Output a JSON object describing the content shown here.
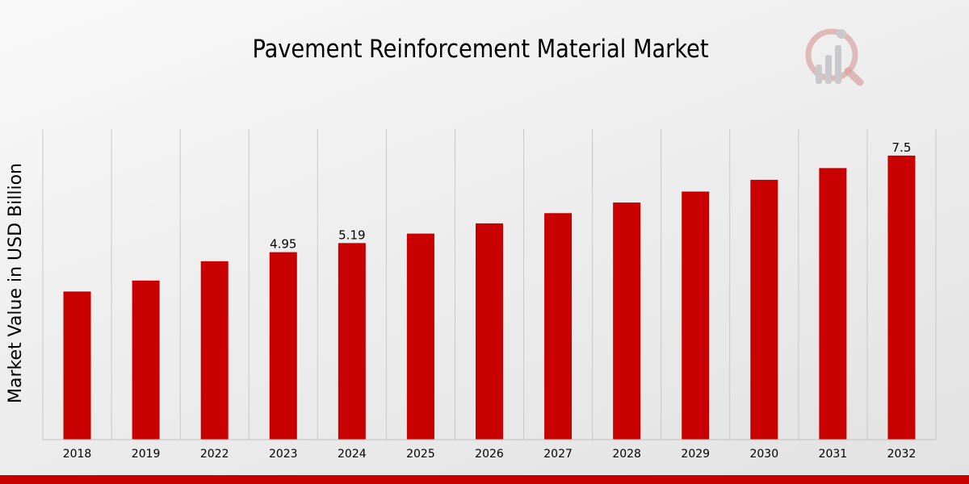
{
  "chart_data": {
    "type": "bar",
    "title": "Pavement Reinforcement Material Market",
    "xlabel": "",
    "ylabel": "Market Value in USD Billion",
    "categories": [
      "2018",
      "2019",
      "2022",
      "2023",
      "2024",
      "2025",
      "2026",
      "2027",
      "2028",
      "2029",
      "2030",
      "2031",
      "2032"
    ],
    "values": [
      3.91,
      4.2,
      4.71,
      4.95,
      5.19,
      5.44,
      5.71,
      5.98,
      6.26,
      6.55,
      6.86,
      7.17,
      7.5
    ],
    "data_labels": [
      {
        "category": "2023",
        "text": "4.95"
      },
      {
        "category": "2024",
        "text": "5.19"
      },
      {
        "category": "2032",
        "text": "7.5"
      }
    ],
    "ylim": [
      0,
      8.2
    ],
    "grid": "vertical"
  },
  "colors": {
    "bar": "#c80000",
    "grid": "#c8c8c8",
    "axis": "#bfbfbf",
    "text": "#000000",
    "bottom_bar": "#c80000",
    "logo_ring": "#d9a6a6",
    "logo_bars": "#c9c9cc"
  },
  "branding": {
    "logo_icon": "magnifier-chart-logo-icon"
  }
}
